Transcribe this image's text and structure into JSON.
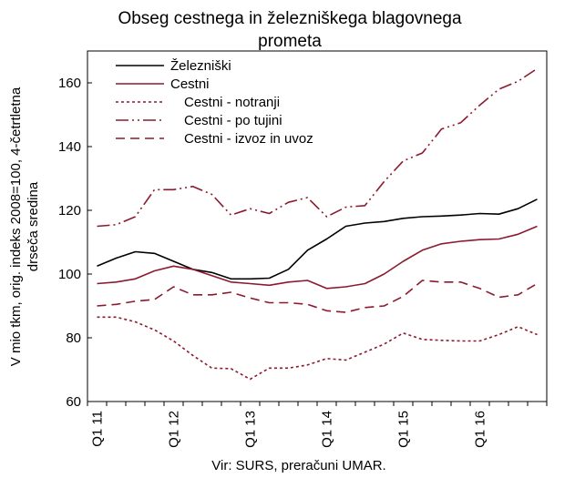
{
  "chart_data": {
    "type": "line",
    "title_lines": [
      "Obseg cestnega in železniškega blagovnega",
      "prometa"
    ],
    "ylabel_lines": [
      "V mio tkm, orig. indeks 2008=100, 4-četrtletna",
      "drseča sredina"
    ],
    "source": "Vir: SURS, preračuni UMAR.",
    "ylim": [
      60,
      170
    ],
    "yticks": [
      60,
      80,
      100,
      120,
      140,
      160
    ],
    "ytick_labels": [
      "60",
      "80",
      "100",
      "120",
      "140",
      "160"
    ],
    "xtick_labels": [
      "Q1 11",
      "Q1 12",
      "Q1 13",
      "Q1 14",
      "Q1 15",
      "Q1 16"
    ],
    "xtick_index": [
      0,
      4,
      8,
      12,
      16,
      20
    ],
    "grid": false,
    "legend_position": "top-left",
    "series": [
      {
        "name": "Železniški",
        "color": "#000000",
        "dash": "solid",
        "values": [
          102.5,
          105,
          107,
          106.5,
          104,
          101.5,
          100.5,
          98.5,
          98.5,
          98.7,
          101.5,
          107.5,
          111,
          115,
          116,
          116.5,
          117.5,
          118,
          118.2,
          118.5,
          119,
          118.8,
          120.5,
          123.5
        ]
      },
      {
        "name": "Cestni",
        "color": "#8b1a2e",
        "dash": "solid",
        "values": [
          97,
          97.5,
          98.5,
          101,
          102.5,
          101.5,
          99.5,
          97.5,
          97,
          96.5,
          97.5,
          98,
          95.5,
          96,
          97,
          100,
          104,
          107.5,
          109.5,
          110.3,
          110.8,
          111,
          112.5,
          115
        ]
      },
      {
        "name": "Cestni - notranji",
        "color": "#8b1a2e",
        "dash": "dotted",
        "values": [
          86.5,
          86.5,
          85,
          82.5,
          79,
          74.5,
          70.5,
          70.3,
          67,
          70.5,
          70.5,
          71.5,
          73.5,
          73,
          75.5,
          78,
          81.5,
          79.5,
          79.2,
          79,
          79,
          81,
          83.5,
          81
        ]
      },
      {
        "name": "Cestni - po tujini",
        "color": "#8b1a2e",
        "dash": "dashdotdot",
        "values": [
          115,
          115.5,
          118,
          126.5,
          126.5,
          127.5,
          125,
          118.5,
          120.5,
          119,
          122.5,
          124,
          118,
          121,
          121.5,
          129,
          135.5,
          138,
          145.5,
          147.5,
          153,
          158,
          160.5,
          164.5
        ]
      },
      {
        "name": "Cestni - izvoz in uvoz",
        "color": "#8b1a2e",
        "dash": "dashed",
        "values": [
          90,
          90.5,
          91.5,
          92,
          96,
          93.5,
          93.5,
          94.3,
          92.5,
          91,
          91,
          90.5,
          88.5,
          88,
          89.5,
          90,
          93,
          98,
          97.5,
          97.5,
          95.5,
          92.7,
          93.5,
          97
        ]
      }
    ]
  }
}
